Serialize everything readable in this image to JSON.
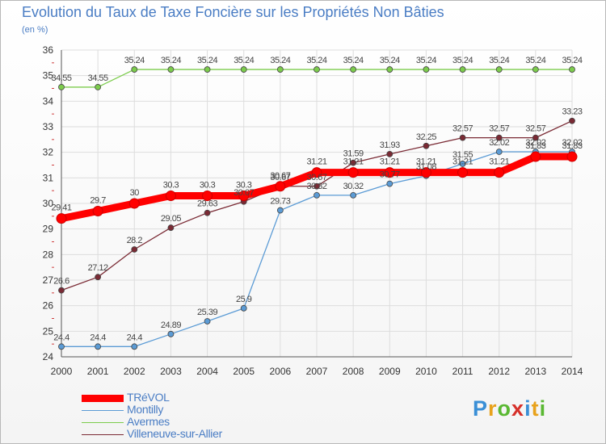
{
  "title": "Evolution du Taux de Taxe Foncière sur les Propriétés Non Bâties",
  "subtitle": "(en %)",
  "logo": "Proxiti",
  "logo_colors": [
    "#3a8fd6",
    "#e8a21c",
    "#5ab832",
    "#d6302a",
    "#3a8fd6",
    "#e8a21c",
    "#5ab832"
  ],
  "chart_data": {
    "type": "line",
    "title": "Evolution du Taux de Taxe Foncière sur les Propriétés Non Bâties",
    "ylabel": "(en %)",
    "xlabel": "",
    "x": [
      "2000",
      "2001",
      "2002",
      "2003",
      "2004",
      "2005",
      "2006",
      "2007",
      "2008",
      "2009",
      "2010",
      "2011",
      "2012",
      "2013",
      "2014"
    ],
    "ylim": [
      24,
      36
    ],
    "yticks": [
      24,
      25,
      26,
      27,
      28,
      29,
      30,
      31,
      32,
      33,
      34,
      35,
      36
    ],
    "grid": true,
    "legend_position": "bottom-left",
    "series": [
      {
        "name": "TRéVOL",
        "color": "#ff0000",
        "values": [
          29.41,
          29.7,
          30,
          30.3,
          30.3,
          30.3,
          30.67,
          31.21,
          31.21,
          31.21,
          31.21,
          31.21,
          31.21,
          31.83,
          31.83
        ],
        "labels": [
          "29.41",
          "29.7",
          "30",
          "30.3",
          "30.3",
          "30.3",
          "30.67",
          "31.21",
          "31.21",
          "31.21",
          "31.21",
          "31.21",
          "31.21",
          "31.83",
          "31.83"
        ]
      },
      {
        "name": "Montilly",
        "color": "#5b9bd5",
        "values": [
          24.4,
          24.4,
          24.4,
          24.89,
          25.39,
          25.9,
          29.73,
          30.32,
          30.32,
          30.77,
          31.08,
          31.55,
          32.02,
          32.02,
          32.02
        ],
        "labels": [
          "24.4",
          "24.4",
          "24.4",
          "24.89",
          "25.39",
          "25.9",
          "29.73",
          "30.32",
          "30.32",
          "30.77",
          "31.08",
          "31.55",
          "32.02",
          "32.02",
          "32.02"
        ]
      },
      {
        "name": "Avermes",
        "color": "#7ccc4c",
        "values": [
          34.55,
          34.55,
          35.24,
          35.24,
          35.24,
          35.24,
          35.24,
          35.24,
          35.24,
          35.24,
          35.24,
          35.24,
          35.24,
          35.24,
          35.24
        ],
        "labels": [
          "34.55",
          "34.55",
          "35.24",
          "35.24",
          "35.24",
          "35.24",
          "35.24",
          "35.24",
          "35.24",
          "35.24",
          "35.24",
          "35.24",
          "35.24",
          "35.24",
          "35.24"
        ]
      },
      {
        "name": "Villeneuve-sur-Allier",
        "color": "#7a2a34",
        "values": [
          26.6,
          27.12,
          28.2,
          29.05,
          29.63,
          30.07,
          30.67,
          30.67,
          31.59,
          31.93,
          32.25,
          32.57,
          32.57,
          32.57,
          33.23
        ],
        "labels": [
          "26.6",
          "27.12",
          "28.2",
          "29.05",
          "29.63",
          "30.07",
          "30.67",
          "30.67",
          "31.59",
          "31.93",
          "32.25",
          "32.57",
          "32.57",
          "32.57",
          "33.23"
        ]
      }
    ]
  }
}
